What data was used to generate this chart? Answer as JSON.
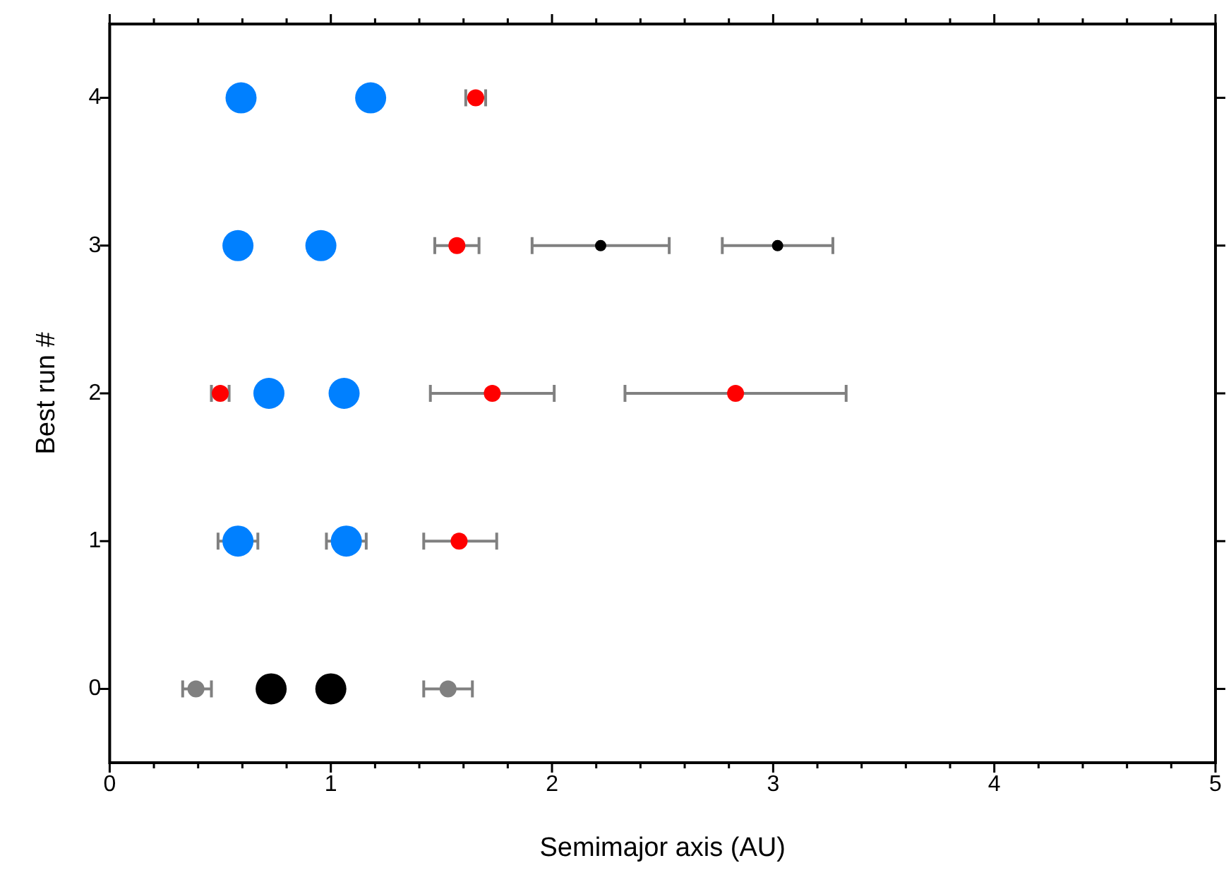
{
  "chart_data": {
    "type": "scatter",
    "xlabel": "Semimajor axis (AU)",
    "ylabel": "Best run #",
    "xlim": [
      0,
      5
    ],
    "ylim": [
      -0.5,
      4.5
    ],
    "xticks": [
      0,
      {
        "value": 0.2,
        "label": null
      },
      {
        "value": 0.4,
        "label": null
      },
      {
        "value": 0.6,
        "label": null
      },
      {
        "value": 0.8,
        "label": null
      },
      1,
      {
        "value": 1.2,
        "label": null
      },
      {
        "value": 1.4,
        "label": null
      },
      {
        "value": 1.6,
        "label": null
      },
      {
        "value": 1.8,
        "label": null
      },
      2,
      {
        "value": 2.2,
        "label": null
      },
      {
        "value": 2.4,
        "label": null
      },
      {
        "value": 2.6,
        "label": null
      },
      {
        "value": 2.8,
        "label": null
      },
      3,
      {
        "value": 3.2,
        "label": null
      },
      {
        "value": 3.4,
        "label": null
      },
      {
        "value": 3.6,
        "label": null
      },
      {
        "value": 3.8,
        "label": null
      },
      4,
      {
        "value": 4.2,
        "label": null
      },
      {
        "value": 4.4,
        "label": null
      },
      {
        "value": 4.6,
        "label": null
      },
      {
        "value": 4.8,
        "label": null
      },
      5
    ],
    "yticks": [
      0,
      1,
      2,
      3,
      4
    ],
    "grid": false,
    "legend": false,
    "marker": "circle",
    "series": [
      {
        "color": "#0080ff",
        "x": [
          0.58,
          1.07,
          0.72,
          1.06,
          0.58,
          0.955,
          0.594,
          1.18
        ],
        "values": [
          1,
          1,
          2,
          2,
          3,
          3,
          4,
          4
        ],
        "xerrors": [
          [
            0.49,
            0.67
          ],
          [
            0.98,
            1.16
          ],
          null,
          null,
          null,
          null,
          null,
          null
        ]
      },
      {
        "color": "#000000",
        "x": [
          0.73,
          1.0
        ],
        "values": [
          0,
          0
        ]
      },
      {
        "color": "#ff0000",
        "x": [
          1.58,
          0.5,
          1.73,
          2.83,
          1.57,
          1.655
        ],
        "values": [
          1,
          2,
          2,
          2,
          3,
          4
        ],
        "xerrors": [
          [
            1.42,
            1.75
          ],
          [
            0.46,
            0.54
          ],
          [
            1.45,
            2.01
          ],
          [
            2.33,
            3.33
          ],
          [
            1.47,
            1.67
          ],
          [
            1.61,
            1.7
          ]
        ]
      },
      {
        "color": "#000000",
        "x": [
          2.22,
          3.02
        ],
        "values": [
          3,
          3
        ],
        "xerrors": [
          [
            1.91,
            2.53
          ],
          [
            2.77,
            3.27
          ]
        ]
      },
      {
        "color": "#808080",
        "x": [
          0.39,
          1.53
        ],
        "values": [
          0,
          0
        ],
        "xerrors": [
          [
            0.33,
            0.46
          ],
          [
            1.42,
            1.64
          ]
        ]
      }
    ]
  }
}
